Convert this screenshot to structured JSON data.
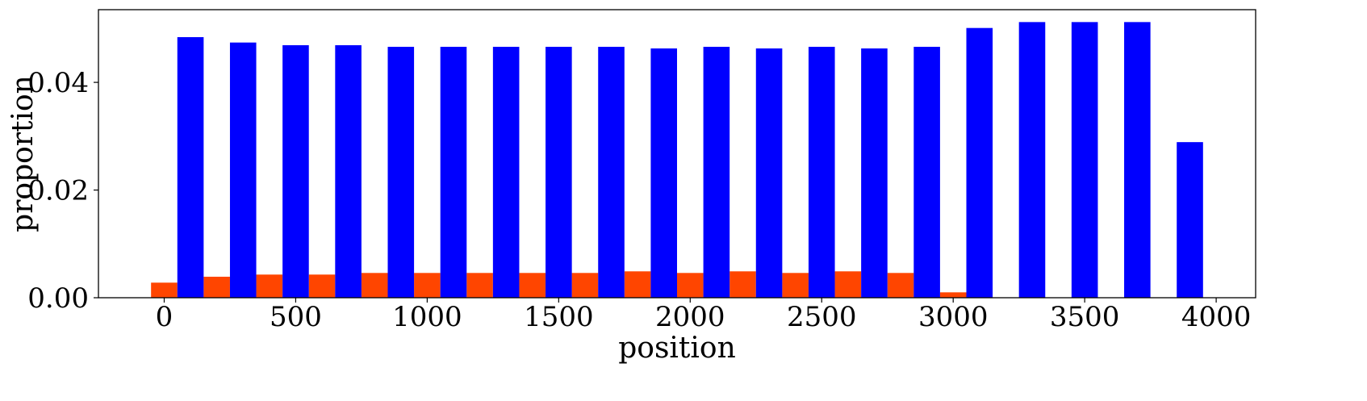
{
  "chart_data": {
    "type": "bar",
    "xlabel": "position",
    "ylabel": "proportion",
    "xlim": [
      -250,
      4150
    ],
    "ylim": [
      0,
      0.0535
    ],
    "bar_width": 100,
    "xticks": [
      0,
      500,
      1000,
      1500,
      2000,
      2500,
      3000,
      3500,
      4000
    ],
    "xtick_labels": [
      "0",
      "500",
      "1000",
      "1500",
      "2000",
      "2500",
      "3000",
      "3500",
      "4000"
    ],
    "yticks": [
      0,
      0.02,
      0.04
    ],
    "ytick_labels": [
      "0.00",
      "0.02",
      "0.04"
    ],
    "grid": false,
    "series": [
      {
        "color": "#ff4500",
        "x": [
          0,
          200,
          400,
          600,
          800,
          1000,
          1200,
          1400,
          1600,
          1800,
          2000,
          2200,
          2400,
          2600,
          2800,
          3000
        ],
        "values": [
          0.0028,
          0.0039,
          0.0043,
          0.0043,
          0.0046,
          0.0046,
          0.0046,
          0.0046,
          0.0046,
          0.0049,
          0.0046,
          0.0049,
          0.0046,
          0.0049,
          0.0046,
          0.001
        ]
      },
      {
        "color": "#0000ff",
        "x": [
          100,
          300,
          500,
          700,
          900,
          1100,
          1300,
          1500,
          1700,
          1900,
          2100,
          2300,
          2500,
          2700,
          2900,
          3100,
          3300,
          3500,
          3700,
          3900
        ],
        "values": [
          0.0484,
          0.0474,
          0.0469,
          0.0469,
          0.0466,
          0.0466,
          0.0466,
          0.0466,
          0.0466,
          0.0463,
          0.0466,
          0.0463,
          0.0466,
          0.0463,
          0.0466,
          0.0501,
          0.0512,
          0.0512,
          0.0512,
          0.0289
        ]
      }
    ]
  }
}
